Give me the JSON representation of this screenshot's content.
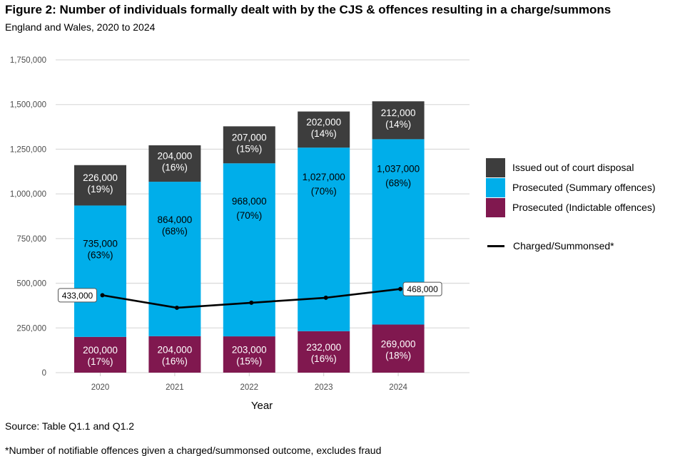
{
  "title": "Figure 2: Number of individuals formally dealt with by the CJS & offences resulting in a charge/summons",
  "subtitle": "England and Wales, 2020 to 2024",
  "source": "Source: Table Q1.1 and Q1.2",
  "footnote": "*Number of notifiable offences given a charged/summonsed outcome, excludes fraud",
  "colors": {
    "out_of_court": "#3d3d3d",
    "summary": "#00aeea",
    "indictable": "#80184f",
    "line": "#000000",
    "grid": "#dddddd"
  },
  "legend": {
    "items": [
      {
        "label": "Issued out of court disposal",
        "color": "#3d3d3d"
      },
      {
        "label": "Prosecuted (Summary offences)",
        "color": "#00aeea"
      },
      {
        "label": "Prosecuted (Indictable offences)",
        "color": "#80184f"
      }
    ],
    "line_label": "Charged/Summonsed*"
  },
  "chart_data": {
    "type": "bar",
    "stacked": true,
    "title": "Figure 2: Number of individuals formally dealt with by the CJS & offences resulting in a charge/summons",
    "subtitle": "England and Wales, 2020 to 2024",
    "xlabel": "Year",
    "ylabel": "",
    "categories": [
      "2020",
      "2021",
      "2022",
      "2023",
      "2024"
    ],
    "ylim": [
      0,
      1750000
    ],
    "yticks": [
      0,
      250000,
      500000,
      750000,
      1000000,
      1250000,
      1500000,
      1750000
    ],
    "ytick_labels": [
      "0",
      "250,000",
      "500,000",
      "750,000",
      "1,000,000",
      "1,250,000",
      "1,500,000",
      "1,750,000"
    ],
    "grid": "horizontal",
    "legend_position": "right",
    "series": [
      {
        "name": "Prosecuted (Indictable offences)",
        "color": "#80184f",
        "values": [
          200000,
          204000,
          203000,
          232000,
          269000
        ],
        "labels": [
          "200,000",
          "204,000",
          "203,000",
          "232,000",
          "269,000"
        ],
        "percent_labels": [
          "(17%)",
          "(16%)",
          "(15%)",
          "(16%)",
          "(18%)"
        ],
        "label_color": "#ffffff"
      },
      {
        "name": "Prosecuted (Summary offences)",
        "color": "#00aeea",
        "values": [
          735000,
          864000,
          968000,
          1027000,
          1037000
        ],
        "labels": [
          "735,000",
          "864,000",
          "968,000",
          "1,027,000",
          "1,037,000"
        ],
        "percent_labels": [
          "(63%)",
          "(68%)",
          "(70%)",
          "(70%)",
          "(68%)"
        ],
        "label_color": "#000000"
      },
      {
        "name": "Issued out of court disposal",
        "color": "#3d3d3d",
        "values": [
          226000,
          204000,
          207000,
          202000,
          212000
        ],
        "labels": [
          "226,000",
          "204,000",
          "207,000",
          "202,000",
          "212,000"
        ],
        "percent_labels": [
          "(19%)",
          "(16%)",
          "(15%)",
          "(14%)",
          "(14%)"
        ],
        "label_color": "#ffffff"
      }
    ],
    "line_series": {
      "name": "Charged/Summonsed*",
      "color": "#000000",
      "values": [
        433000,
        363000,
        391000,
        419000,
        468000
      ],
      "annotations": [
        {
          "index": 0,
          "label": "433,000",
          "side": "left"
        },
        {
          "index": 4,
          "label": "468,000",
          "side": "right"
        }
      ]
    }
  }
}
